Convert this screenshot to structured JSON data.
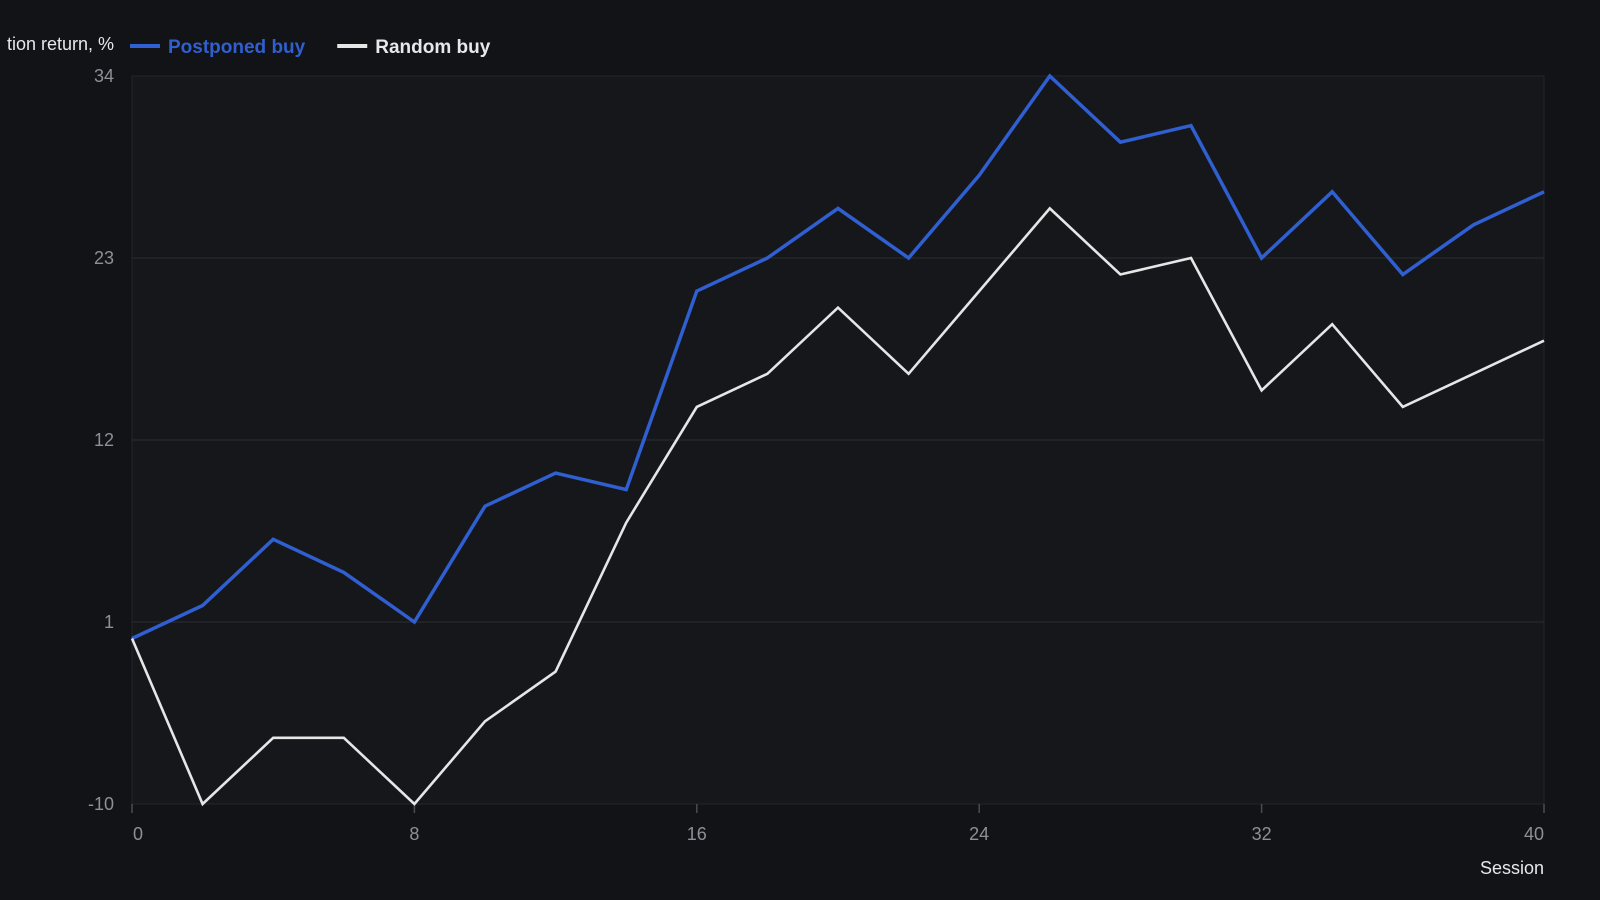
{
  "chart_data": {
    "type": "line",
    "title": "",
    "ylabel": "tion return, %",
    "xlabel": "Session",
    "x": [
      0,
      2,
      4,
      6,
      8,
      10,
      12,
      14,
      16,
      18,
      20,
      22,
      24,
      26,
      28,
      30,
      32,
      34,
      36,
      38,
      40
    ],
    "series": [
      {
        "name": "Postponed buy",
        "color": "#2f5fd0",
        "values": [
          0,
          2,
          6,
          4,
          1,
          8,
          10,
          9,
          21,
          23,
          26,
          23,
          28,
          34,
          30,
          31,
          23,
          27,
          22,
          25,
          27
        ]
      },
      {
        "name": "Random buy",
        "color": "#e6e6e6",
        "values": [
          0,
          -10,
          -6,
          -6,
          -10,
          -5,
          -2,
          7,
          14,
          16,
          20,
          16,
          21,
          26,
          22,
          23,
          15,
          19,
          14,
          16,
          18
        ]
      }
    ],
    "xlim": [
      0,
      40
    ],
    "ylim": [
      -10,
      34
    ],
    "x_ticks": [
      "0",
      "8",
      "16",
      "24",
      "32",
      "40"
    ],
    "y_ticks": [
      "-10",
      "1",
      "12",
      "23",
      "34"
    ],
    "grid": "horizontal",
    "legend_position": "top-left"
  },
  "colors": {
    "background": "#121316",
    "plot_background": "#16171b",
    "grid": "#2a2c31",
    "tick_label": "#8e9096",
    "axis_title": "#e7e8ea"
  }
}
